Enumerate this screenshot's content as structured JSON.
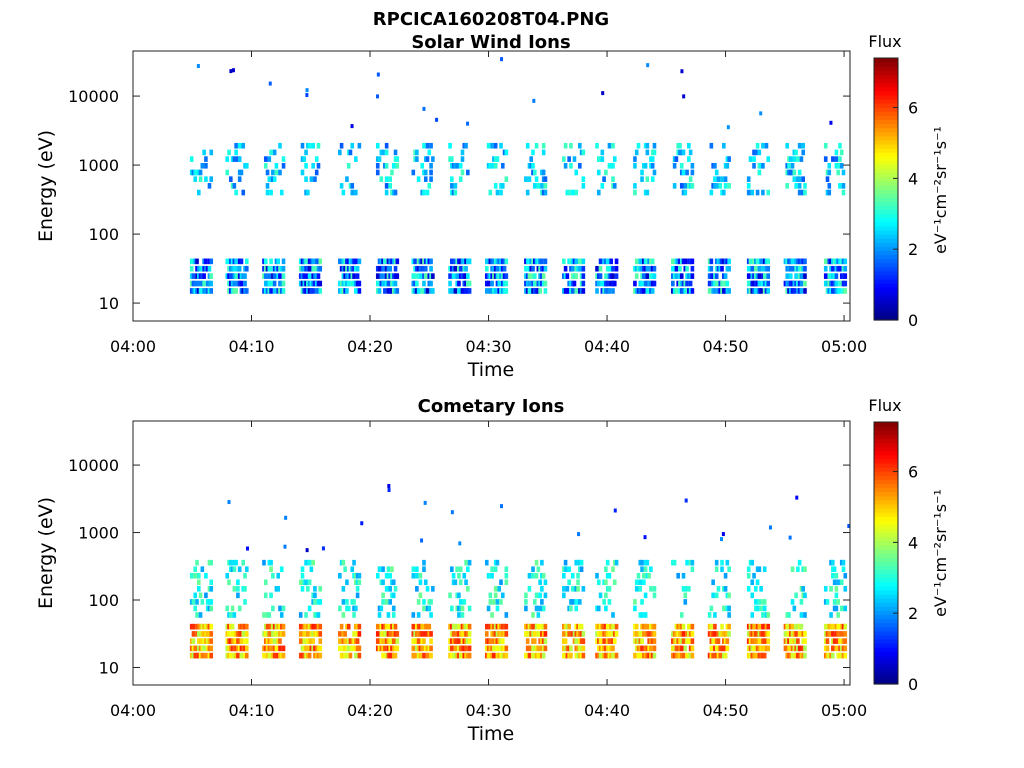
{
  "figure_title": "RPCICA160208T04.PNG",
  "colors": {
    "axis": "#222222",
    "background": "#ffffff",
    "colormap": [
      "#00007f",
      "#0000ff",
      "#007fff",
      "#00ffff",
      "#7fff7f",
      "#ffff00",
      "#ff7f00",
      "#ff0000",
      "#7f0000"
    ]
  },
  "chart_data": [
    {
      "type": "heatmap",
      "title": "Solar Wind Ions",
      "xlabel": "Time",
      "ylabel": "Energy (eV)",
      "x_ticks": [
        "04:00",
        "04:10",
        "04:20",
        "04:30",
        "04:40",
        "04:50",
        "05:00"
      ],
      "x_range_minutes": [
        0,
        60.5
      ],
      "y_ticks": [
        "10",
        "100",
        "1000",
        "10000"
      ],
      "y_scale": "log",
      "y_range": [
        5.5,
        45000
      ],
      "grid": false,
      "colorbar": {
        "title": "Flux",
        "label": "eV⁻¹cm⁻²sr⁻¹s⁻¹",
        "ticks": [
          "0",
          "2",
          "4",
          "6"
        ],
        "range": [
          0,
          7.4
        ]
      },
      "sweep_start_minutes": [
        4.8,
        7.8,
        10.9,
        14.0,
        17.3,
        20.5,
        23.5,
        26.6,
        29.7,
        33.0,
        36.2,
        39.0,
        42.2,
        45.4,
        48.5,
        51.8,
        54.9,
        58.3
      ],
      "flux_summary": {
        "low_energy_band_eV": [
          15,
          50
        ],
        "low_energy_flux": [
          0.5,
          3.5
        ],
        "mid_energy_band_eV": [
          400,
          2000
        ],
        "mid_energy_flux": [
          1.5,
          3.3
        ],
        "high_energy_sparse_eV": [
          3000,
          35000
        ]
      }
    },
    {
      "type": "heatmap",
      "title": "Cometary Ions",
      "xlabel": "Time",
      "ylabel": "Energy (eV)",
      "x_ticks": [
        "04:00",
        "04:10",
        "04:20",
        "04:30",
        "04:40",
        "04:50",
        "05:00"
      ],
      "x_range_minutes": [
        0,
        60.5
      ],
      "y_ticks": [
        "10",
        "100",
        "1000",
        "10000"
      ],
      "y_scale": "log",
      "y_range": [
        5.5,
        45000
      ],
      "grid": false,
      "colorbar": {
        "title": "Flux",
        "label": "eV⁻¹cm⁻²sr⁻¹s⁻¹",
        "ticks": [
          "0",
          "2",
          "4",
          "6"
        ],
        "range": [
          0,
          7.4
        ]
      },
      "sweep_start_minutes": [
        4.8,
        7.8,
        10.9,
        14.0,
        17.3,
        20.5,
        23.5,
        26.6,
        29.7,
        33.0,
        36.2,
        39.0,
        42.2,
        45.4,
        48.5,
        51.8,
        54.9,
        58.3
      ],
      "flux_summary": {
        "low_energy_band_eV": [
          15,
          50
        ],
        "low_energy_flux": [
          4.0,
          6.3
        ],
        "mid_energy_band_eV": [
          60,
          400
        ],
        "mid_energy_flux": [
          2.0,
          3.6
        ],
        "high_energy_sparse_eV": [
          500,
          5000
        ]
      }
    }
  ]
}
